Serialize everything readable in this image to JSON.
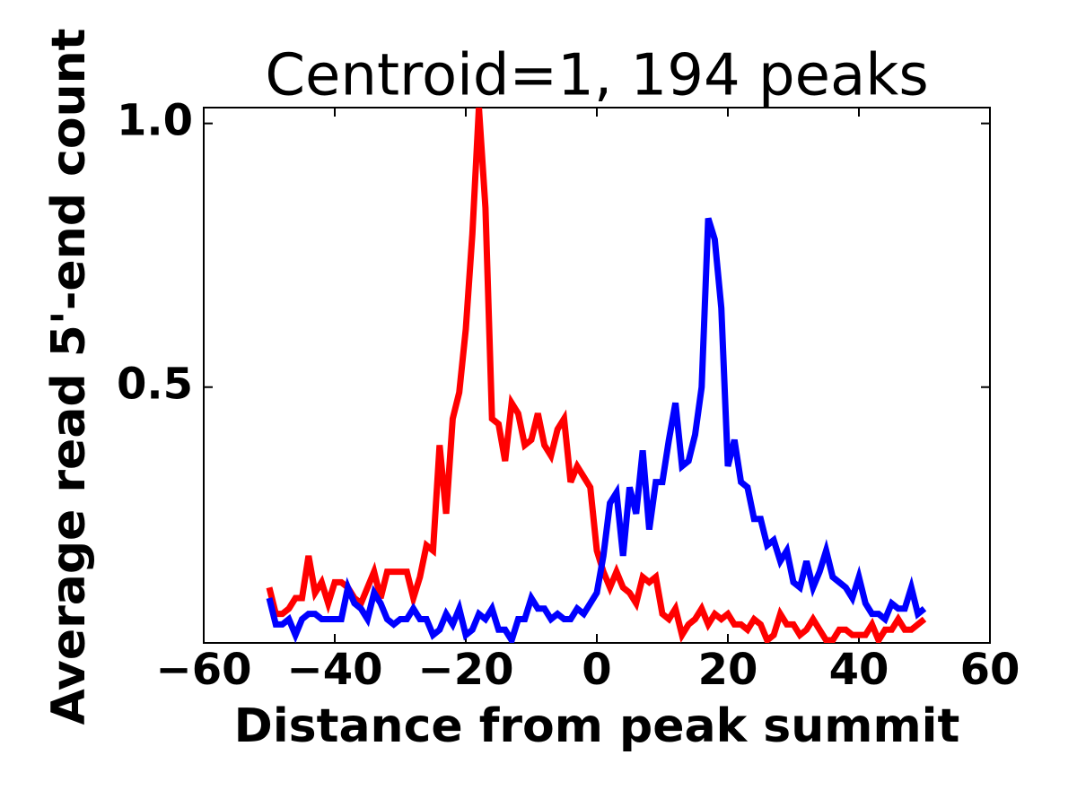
{
  "chart_data": {
    "type": "line",
    "title": "Centroid=1, 194 peaks",
    "x_label": "Distance from peak summit",
    "y_label": "Average read 5'-end count",
    "x": [
      -50,
      -49,
      -48,
      -47,
      -46,
      -45,
      -44,
      -43,
      -42,
      -41,
      -40,
      -39,
      -38,
      -37,
      -36,
      -35,
      -34,
      -33,
      -32,
      -31,
      -30,
      -29,
      -28,
      -27,
      -26,
      -25,
      -24,
      -23,
      -22,
      -21,
      -20,
      -19,
      -18,
      -17,
      -16,
      -15,
      -14,
      -13,
      -12,
      -11,
      -10,
      -9,
      -8,
      -7,
      -6,
      -5,
      -4,
      -3,
      -2,
      -1,
      0,
      1,
      2,
      3,
      4,
      5,
      6,
      7,
      8,
      9,
      10,
      11,
      12,
      13,
      14,
      15,
      16,
      17,
      18,
      19,
      20,
      21,
      22,
      23,
      24,
      25,
      26,
      27,
      28,
      29,
      30,
      31,
      32,
      33,
      34,
      35,
      36,
      37,
      38,
      39,
      40,
      41,
      42,
      43,
      44,
      45,
      46,
      47,
      48,
      49,
      50
    ],
    "series": [
      {
        "color": "#ff0000",
        "values": [
          0.12,
          0.07,
          0.07,
          0.08,
          0.1,
          0.1,
          0.18,
          0.11,
          0.13,
          0.09,
          0.13,
          0.13,
          0.12,
          0.1,
          0.09,
          0.12,
          0.15,
          0.1,
          0.15,
          0.15,
          0.15,
          0.15,
          0.1,
          0.14,
          0.2,
          0.19,
          0.39,
          0.26,
          0.44,
          0.49,
          0.61,
          0.79,
          1.03,
          0.84,
          0.44,
          0.43,
          0.36,
          0.47,
          0.45,
          0.39,
          0.4,
          0.45,
          0.39,
          0.37,
          0.42,
          0.44,
          0.32,
          0.35,
          0.33,
          0.31,
          0.19,
          0.15,
          0.12,
          0.15,
          0.12,
          0.11,
          0.09,
          0.14,
          0.13,
          0.14,
          0.07,
          0.06,
          0.08,
          0.03,
          0.05,
          0.06,
          0.08,
          0.05,
          0.07,
          0.06,
          0.07,
          0.05,
          0.05,
          0.04,
          0.06,
          0.05,
          0.02,
          0.03,
          0.07,
          0.05,
          0.05,
          0.03,
          0.04,
          0.06,
          0.04,
          0.02,
          0.02,
          0.04,
          0.04,
          0.03,
          0.03,
          0.03,
          0.05,
          0.02,
          0.04,
          0.04,
          0.06,
          0.04,
          0.04,
          0.05,
          0.06
        ]
      },
      {
        "color": "#0000ff",
        "values": [
          0.1,
          0.05,
          0.05,
          0.06,
          0.03,
          0.06,
          0.07,
          0.07,
          0.06,
          0.06,
          0.06,
          0.06,
          0.12,
          0.09,
          0.08,
          0.06,
          0.11,
          0.09,
          0.06,
          0.05,
          0.06,
          0.06,
          0.08,
          0.06,
          0.06,
          0.03,
          0.04,
          0.07,
          0.05,
          0.08,
          0.03,
          0.04,
          0.07,
          0.06,
          0.08,
          0.04,
          0.04,
          0.02,
          0.06,
          0.06,
          0.1,
          0.08,
          0.08,
          0.06,
          0.07,
          0.06,
          0.06,
          0.08,
          0.07,
          0.09,
          0.11,
          0.18,
          0.28,
          0.3,
          0.18,
          0.31,
          0.26,
          0.38,
          0.23,
          0.32,
          0.32,
          0.4,
          0.47,
          0.35,
          0.36,
          0.41,
          0.5,
          0.82,
          0.78,
          0.65,
          0.35,
          0.4,
          0.32,
          0.31,
          0.25,
          0.25,
          0.2,
          0.21,
          0.17,
          0.19,
          0.13,
          0.12,
          0.17,
          0.12,
          0.15,
          0.19,
          0.14,
          0.13,
          0.12,
          0.1,
          0.14,
          0.09,
          0.07,
          0.07,
          0.06,
          0.09,
          0.08,
          0.08,
          0.12,
          0.07,
          0.08
        ]
      }
    ],
    "xlim": [
      -60,
      60
    ],
    "ylim": [
      0.015,
      1.03
    ],
    "xticks": [
      {
        "value": -60,
        "label": "−60"
      },
      {
        "value": -40,
        "label": "−40"
      },
      {
        "value": -20,
        "label": "−20"
      },
      0,
      20,
      40,
      60
    ],
    "yticks": [
      0.5,
      {
        "value": 1,
        "label": "1.0"
      }
    ]
  }
}
